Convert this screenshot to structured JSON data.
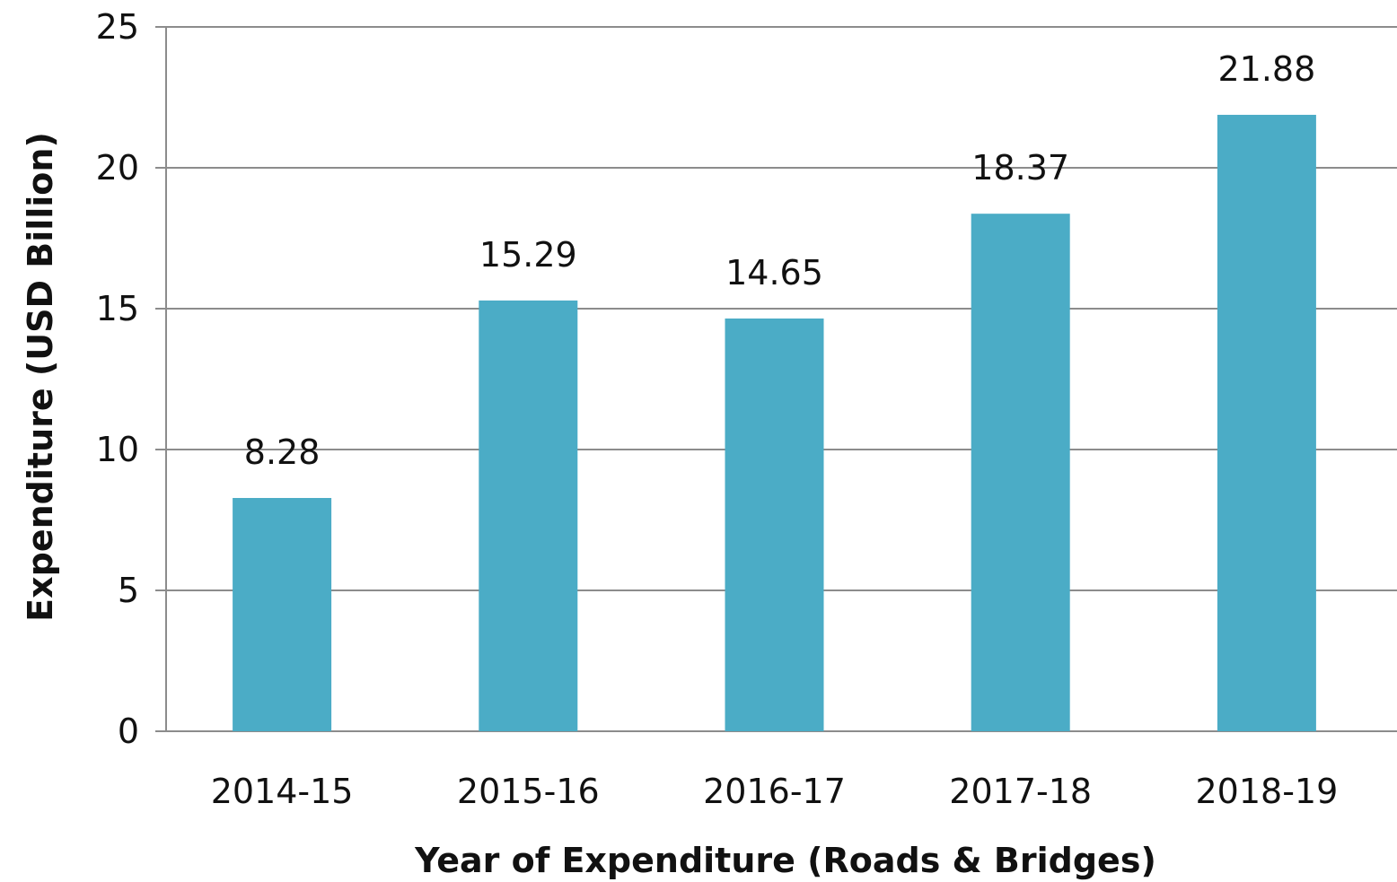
{
  "chart_data": {
    "type": "bar",
    "categories": [
      "2014-15",
      "2015-16",
      "2016-17",
      "2017-18",
      "2018-19"
    ],
    "values": [
      8.28,
      15.29,
      14.65,
      18.37,
      21.88
    ],
    "data_labels": [
      "8.28",
      "15.29",
      "14.65",
      "18.37",
      "21.88"
    ],
    "title": "",
    "xlabel": "Year of Expenditure (Roads & Bridges)",
    "ylabel": "Expenditure (USD Billion)",
    "ylim": [
      0,
      25
    ],
    "yticks": [
      0,
      5,
      10,
      15,
      20,
      25
    ],
    "grid": true,
    "legend": "none",
    "colors": {
      "bar": "#4BACC6",
      "grid": "#8c8c8c",
      "axis": "#8c8c8c"
    }
  }
}
